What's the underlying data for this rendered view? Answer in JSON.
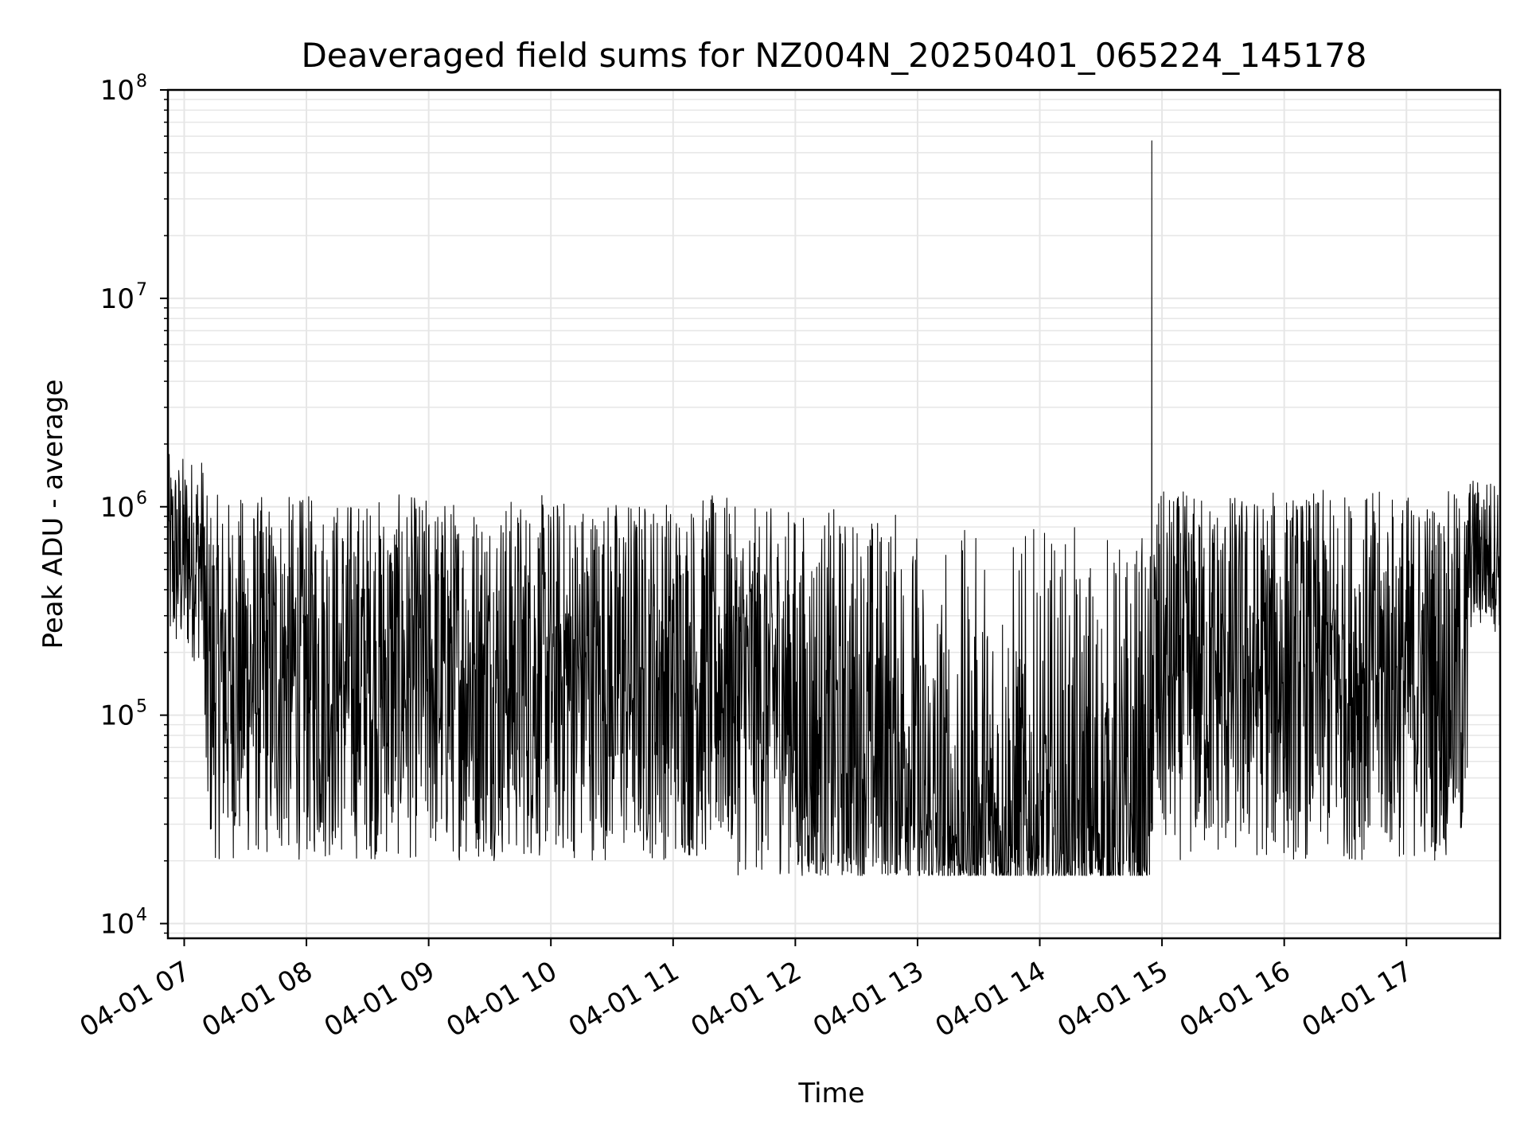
{
  "chart_data": {
    "type": "line",
    "title": "Deaveraged field sums for NZ004N_20250401_065224_145178",
    "xlabel": "Time",
    "ylabel": "Peak ADU - average",
    "yscale": "log",
    "ylim": [
      8500,
      100000000
    ],
    "xlim": [
      "2025-04-01 06:52",
      "2025-04-01 17:46"
    ],
    "grid": true,
    "line_color": "#000000",
    "grid_color": "#e6e6e6",
    "x_ticks": [
      "04-01 07",
      "04-01 08",
      "04-01 09",
      "04-01 10",
      "04-01 11",
      "04-01 12",
      "04-01 13",
      "04-01 14",
      "04-01 15",
      "04-01 16",
      "04-01 17"
    ],
    "y_ticks": [
      {
        "base": "10",
        "exp": "4"
      },
      {
        "base": "10",
        "exp": "5"
      },
      {
        "base": "10",
        "exp": "6"
      },
      {
        "base": "10",
        "exp": "7"
      },
      {
        "base": "10",
        "exp": "8"
      }
    ],
    "series": [
      {
        "values_description_segments": [
          {
            "from": "2025-04-01 06:52",
            "to": "2025-04-01 07:10",
            "low": 180000,
            "high": 1800000
          },
          {
            "from": "2025-04-01 07:10",
            "to": "2025-04-01 11:30",
            "low": 20000,
            "high": 1150000
          },
          {
            "from": "2025-04-01 11:30",
            "to": "2025-04-01 12:55",
            "low": 17000,
            "high": 1000000
          },
          {
            "from": "2025-04-01 12:55",
            "to": "2025-04-01 14:55",
            "low": 17000,
            "high": 800000
          },
          {
            "from": "2025-04-01 14:55",
            "to": "2025-04-01 17:30",
            "low": 20000,
            "high": 1200000
          },
          {
            "from": "2025-04-01 17:30",
            "to": "2025-04-01 17:46",
            "low": 250000,
            "high": 1400000
          }
        ],
        "x": [
          "2025-04-01 06:52",
          "2025-04-01 07:00",
          "2025-04-01 07:30",
          "2025-04-01 08:00",
          "2025-04-01 08:30",
          "2025-04-01 09:00",
          "2025-04-01 09:30",
          "2025-04-01 10:00",
          "2025-04-01 10:30",
          "2025-04-01 11:00",
          "2025-04-01 11:30",
          "2025-04-01 12:00",
          "2025-04-01 12:30",
          "2025-04-01 13:00",
          "2025-04-01 13:30",
          "2025-04-01 14:00",
          "2025-04-01 14:30",
          "2025-04-01 14:55",
          "2025-04-01 15:00",
          "2025-04-01 15:30",
          "2025-04-01 16:00",
          "2025-04-01 16:30",
          "2025-04-01 17:00",
          "2025-04-01 17:30",
          "2025-04-01 17:46"
        ],
        "y": [
          1000000,
          600000,
          250000,
          220000,
          200000,
          230000,
          240000,
          250000,
          260000,
          250000,
          240000,
          220000,
          150000,
          35000,
          33000,
          32000,
          30000,
          57000000,
          90000,
          80000,
          75000,
          80000,
          90000,
          300000,
          1400000
        ]
      }
    ]
  }
}
